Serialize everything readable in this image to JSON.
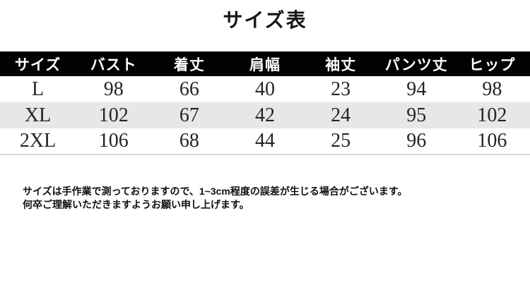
{
  "page": {
    "title": "サイズ表"
  },
  "table": {
    "headers": [
      "サイズ",
      "バスト",
      "着丈",
      "肩幅",
      "袖丈",
      "パンツ丈",
      "ヒップ"
    ],
    "rows": [
      {
        "size": "L",
        "values": [
          "98",
          "66",
          "40",
          "23",
          "94",
          "98"
        ]
      },
      {
        "size": "XL",
        "values": [
          "102",
          "67",
          "42",
          "24",
          "95",
          "102"
        ]
      },
      {
        "size": "2XL",
        "values": [
          "106",
          "68",
          "44",
          "25",
          "96",
          "106"
        ]
      }
    ]
  },
  "note": {
    "line1": "サイズは手作業で測っておりますので、1~3cm程度の誤差が生じる場合がございます。",
    "line2": "何卒ご理解いただきますようお願い申し上げます。"
  },
  "colors": {
    "header_bg": "#020202",
    "header_text": "#ffffff",
    "row_alt_bg": "#e7e7e7",
    "table_bottom_rule": "#d9d9d9"
  }
}
